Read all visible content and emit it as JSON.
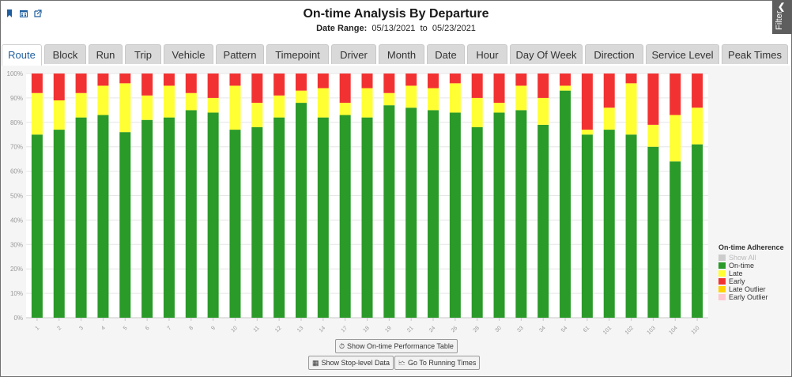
{
  "header": {
    "title": "On-time Analysis By Departure",
    "date_range_label": "Date Range:",
    "date_from": "05/13/2021",
    "date_to_word": "to",
    "date_to": "05/23/2021",
    "icons": [
      "bookmark-icon",
      "calendar-icon",
      "external-link-icon"
    ]
  },
  "filter": {
    "label": "Filter"
  },
  "tabs": [
    {
      "label": "Route",
      "active": true
    },
    {
      "label": "Block"
    },
    {
      "label": "Run"
    },
    {
      "label": "Trip"
    },
    {
      "label": "Vehicle"
    },
    {
      "label": "Pattern"
    },
    {
      "label": "Timepoint"
    },
    {
      "label": "Driver"
    },
    {
      "label": "Month"
    },
    {
      "label": "Date"
    },
    {
      "label": "Hour"
    },
    {
      "label": "Day Of Week"
    },
    {
      "label": "Direction"
    },
    {
      "label": "Service Level"
    },
    {
      "label": "Peak Times"
    }
  ],
  "buttons": {
    "table": "Show On-time Performance Table",
    "stop": "Show Stop-level Data",
    "running": "Go To Running Times"
  },
  "colors": {
    "on_time": "#2a9a29",
    "late": "#ffff33",
    "early": "#f23232",
    "late_outlier": "#ffd400",
    "early_outlier": "#ffc7cf",
    "show_all": "#cccccc"
  },
  "chart_data": {
    "type": "bar",
    "stacked": true,
    "categories": [
      "1",
      "2",
      "3",
      "4",
      "5",
      "6",
      "7",
      "8",
      "9",
      "10",
      "11",
      "12",
      "13",
      "14",
      "17",
      "18",
      "19",
      "21",
      "24",
      "26",
      "28",
      "30",
      "33",
      "34",
      "54",
      "61",
      "101",
      "102",
      "103",
      "104",
      "110"
    ],
    "series": [
      {
        "name": "On-time",
        "values": [
          75,
          77,
          82,
          83,
          76,
          81,
          82,
          85,
          84,
          77,
          78,
          82,
          88,
          82,
          83,
          82,
          87,
          86,
          85,
          84,
          78,
          84,
          85,
          79,
          93,
          75,
          77,
          75,
          70,
          64,
          71
        ]
      },
      {
        "name": "Late",
        "values": [
          17,
          12,
          10,
          12,
          20,
          10,
          13,
          7,
          6,
          18,
          10,
          9,
          5,
          12,
          5,
          12,
          5,
          9,
          9,
          12,
          12,
          4,
          10,
          11,
          2,
          2,
          9,
          21,
          9,
          19,
          15
        ]
      },
      {
        "name": "Early",
        "values": [
          8,
          11,
          8,
          5,
          4,
          9,
          5,
          8,
          10,
          5,
          12,
          9,
          7,
          6,
          12,
          6,
          8,
          5,
          6,
          4,
          10,
          12,
          5,
          10,
          5,
          23,
          14,
          4,
          21,
          17,
          14
        ]
      }
    ],
    "ylim": [
      0,
      100
    ],
    "yticks": [
      "0%",
      "10%",
      "20%",
      "30%",
      "40%",
      "50%",
      "60%",
      "70%",
      "80%",
      "90%",
      "100%"
    ],
    "legend": {
      "title": "On-time Adherence",
      "placement": "right",
      "items": [
        {
          "label": "Show All",
          "color": "#cccccc",
          "dim": true
        },
        {
          "label": "On-time",
          "color": "#2a9a29"
        },
        {
          "label": "Late",
          "color": "#ffff33"
        },
        {
          "label": "Early",
          "color": "#f23232"
        },
        {
          "label": "Late Outlier",
          "color": "#ffd400"
        },
        {
          "label": "Early Outlier",
          "color": "#ffc7cf"
        }
      ]
    },
    "grid": true
  }
}
